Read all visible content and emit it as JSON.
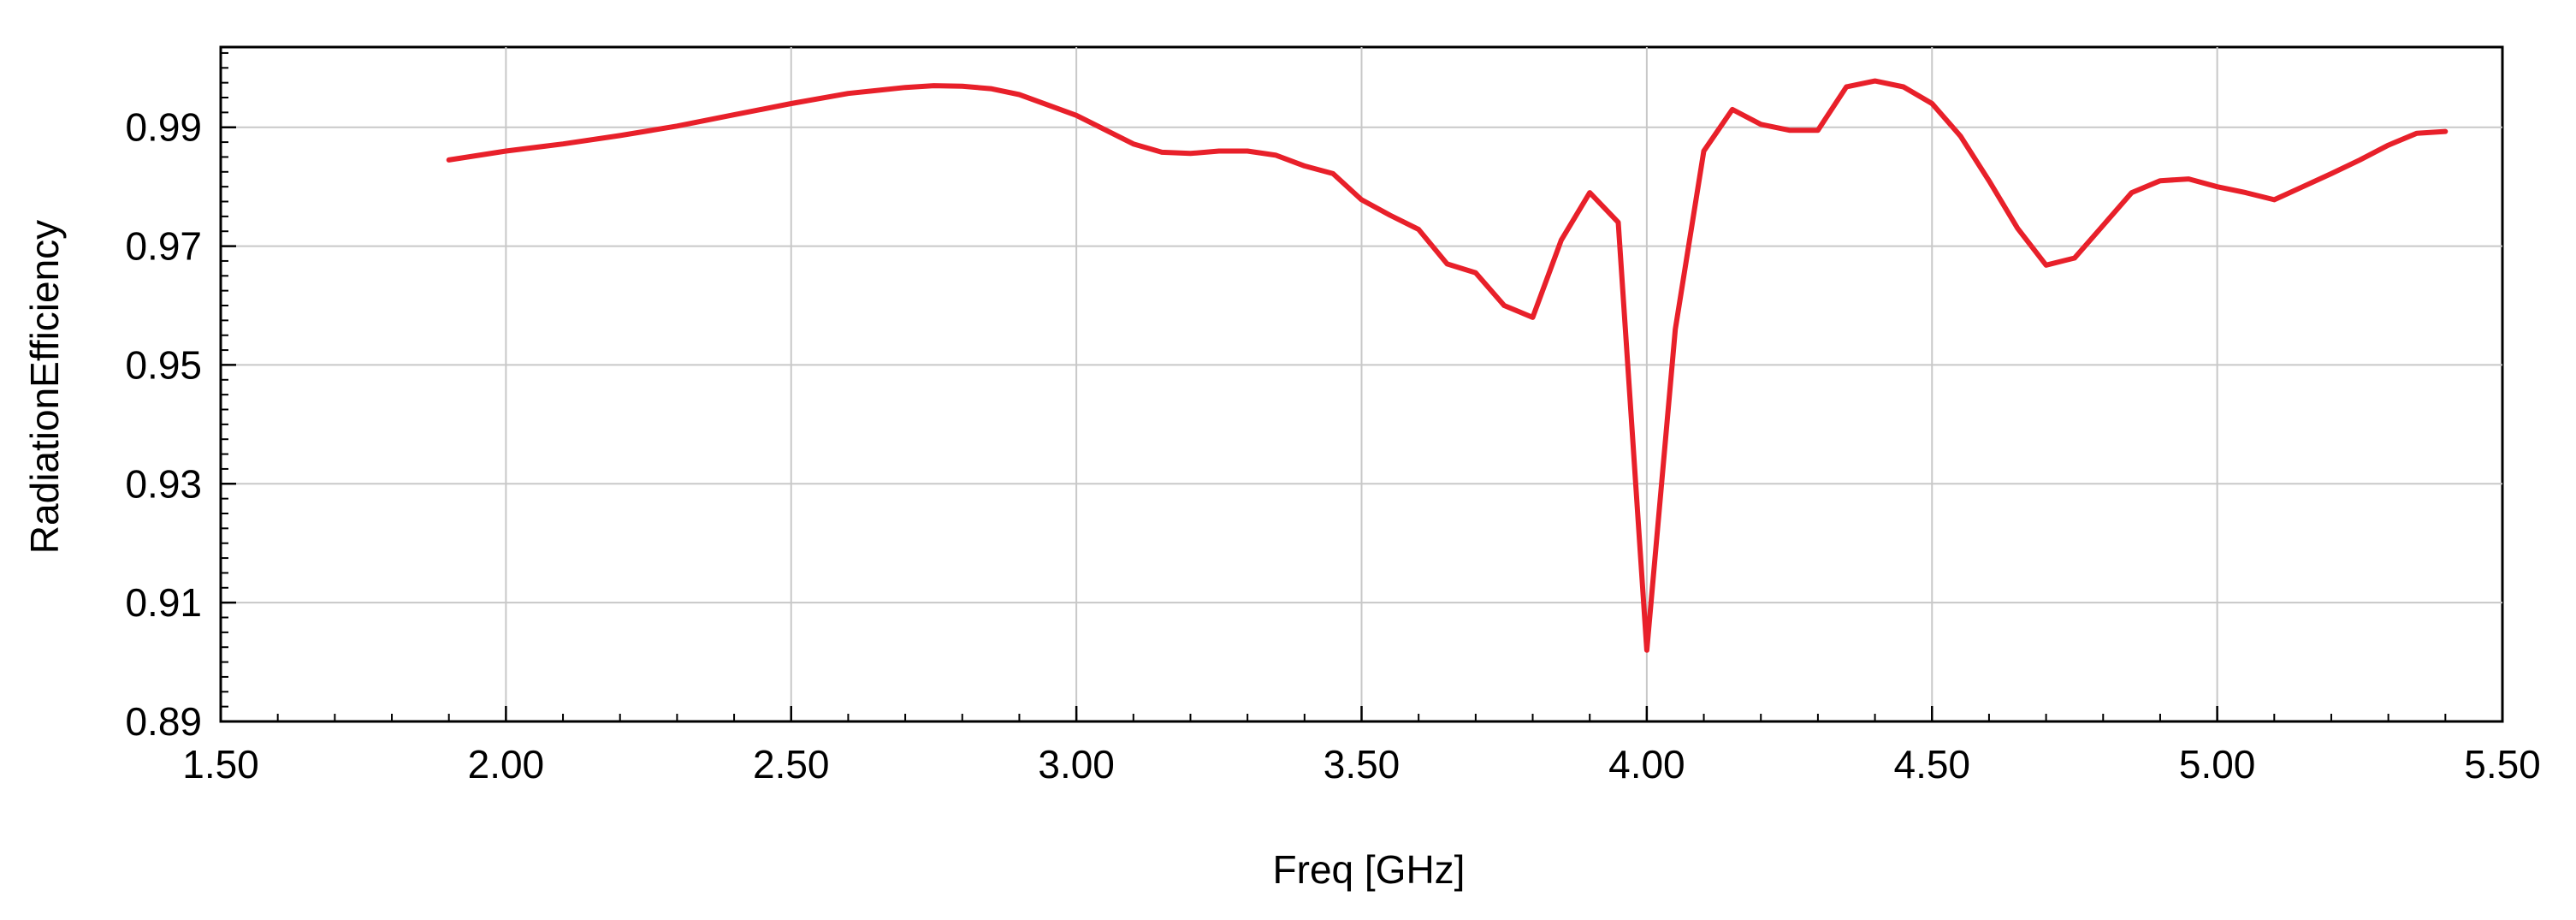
{
  "chart_data": {
    "type": "line",
    "title": "",
    "xlabel": "Freq [GHz]",
    "ylabel": "RadiationEfficiency",
    "xlim": [
      1.5,
      5.5
    ],
    "ylim": [
      0.89,
      1.0035
    ],
    "x_ticks": [
      "1.50",
      "2.00",
      "2.50",
      "3.00",
      "3.50",
      "4.00",
      "4.50",
      "5.00",
      "5.50"
    ],
    "y_ticks": [
      "0.89",
      "0.91",
      "0.93",
      "0.95",
      "0.97",
      "0.99"
    ],
    "grid": true,
    "legend": "none",
    "line_color": "#e8202a",
    "series": [
      {
        "x": [
          1.9,
          2.0,
          2.1,
          2.2,
          2.3,
          2.4,
          2.5,
          2.6,
          2.7,
          2.75,
          2.8,
          2.85,
          2.9,
          3.0,
          3.1,
          3.15,
          3.2,
          3.25,
          3.3,
          3.35,
          3.4,
          3.45,
          3.5,
          3.55,
          3.6,
          3.65,
          3.7,
          3.75,
          3.8,
          3.85,
          3.9,
          3.95,
          4.0,
          4.05,
          4.1,
          4.15,
          4.2,
          4.25,
          4.3,
          4.35,
          4.4,
          4.45,
          4.5,
          4.55,
          4.6,
          4.65,
          4.7,
          4.75,
          4.8,
          4.85,
          4.9,
          4.95,
          5.0,
          5.05,
          5.1,
          5.15,
          5.2,
          5.25,
          5.3,
          5.35,
          5.4
        ],
        "values": [
          0.9845,
          0.986,
          0.9872,
          0.9886,
          0.9902,
          0.9921,
          0.994,
          0.9957,
          0.9967,
          0.997,
          0.9969,
          0.9965,
          0.9955,
          0.992,
          0.9872,
          0.9858,
          0.9856,
          0.986,
          0.986,
          0.9853,
          0.9835,
          0.9822,
          0.9778,
          0.9752,
          0.9728,
          0.967,
          0.9655,
          0.96,
          0.958,
          0.971,
          0.979,
          0.974,
          0.902,
          0.956,
          0.986,
          0.993,
          0.9905,
          0.9895,
          0.9895,
          0.9968,
          0.9978,
          0.9968,
          0.994,
          0.9885,
          0.981,
          0.973,
          0.9668,
          0.968,
          0.9735,
          0.979,
          0.981,
          0.9813,
          0.98,
          0.979,
          0.9778,
          0.98,
          0.9822,
          0.9845,
          0.987,
          0.989,
          0.9893
        ]
      }
    ]
  }
}
